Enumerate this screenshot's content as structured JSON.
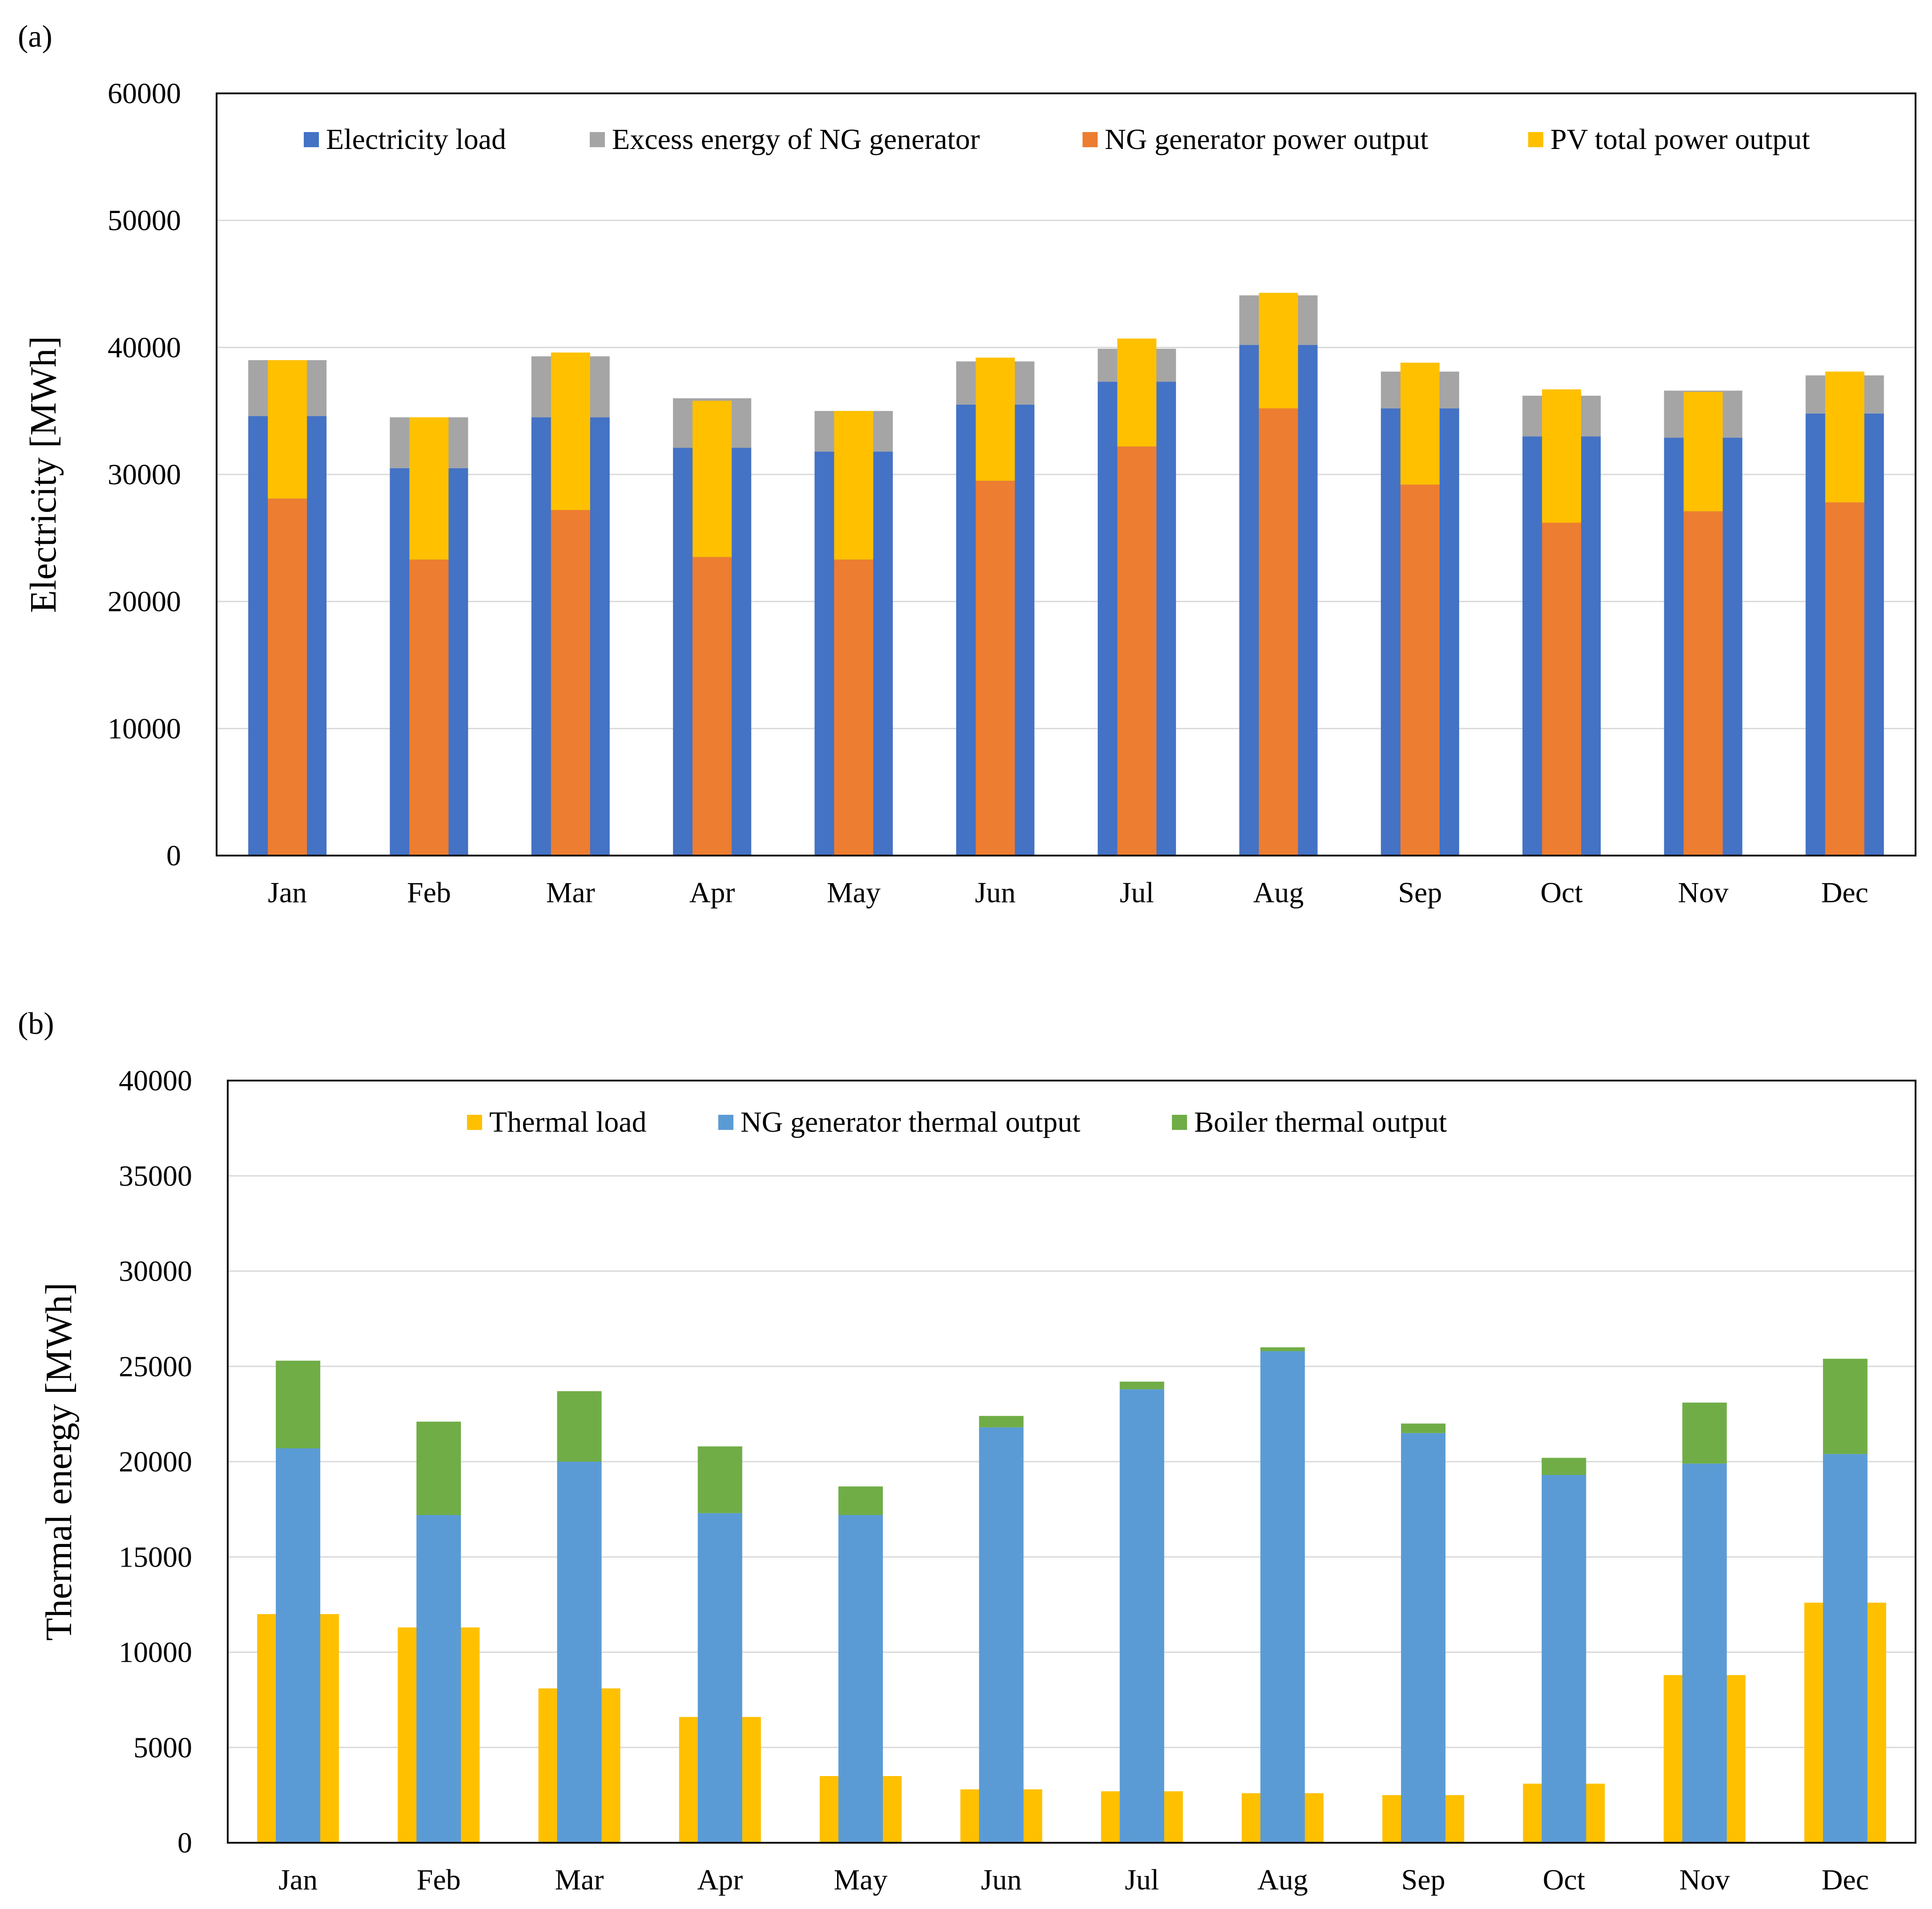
{
  "chart_data": [
    {
      "panel_label": "(a)",
      "type": "bar",
      "layout": "overlapping stacked bars (wide outer bar + narrow inner bar per month)",
      "xlabel": "",
      "ylabel": "Electricity [MWh]",
      "ylim": [
        0,
        60000
      ],
      "yticks": [
        "0",
        "10000",
        "20000",
        "30000",
        "40000",
        "50000",
        "60000"
      ],
      "grid": "horizontal",
      "legend_position": "top (inside plot, one row)",
      "categories": [
        "Jan",
        "Feb",
        "Mar",
        "Apr",
        "May",
        "Jun",
        "Jul",
        "Aug",
        "Sep",
        "Oct",
        "Nov",
        "Dec"
      ],
      "legend": [
        {
          "name": "Electricity load",
          "color": "#4472C4"
        },
        {
          "name": "Excess energy of NG generator",
          "color": "#A5A5A5"
        },
        {
          "name": "NG generator power output",
          "color": "#ED7D31"
        },
        {
          "name": "PV total power output",
          "color": "#FFC000"
        }
      ],
      "outer_stack": [
        {
          "name": "Electricity load",
          "color": "#4472C4",
          "values": [
            34600,
            30500,
            34500,
            32100,
            31800,
            35500,
            37300,
            40200,
            35200,
            33000,
            32900,
            34800
          ]
        },
        {
          "name": "Excess energy of NG generator",
          "color": "#A5A5A5",
          "values": [
            4400,
            4000,
            4800,
            3900,
            3200,
            3400,
            2600,
            3900,
            2900,
            3200,
            3700,
            3000
          ]
        }
      ],
      "inner_stack": [
        {
          "name": "NG generator power output",
          "color": "#ED7D31",
          "values": [
            28100,
            23300,
            27200,
            23500,
            23300,
            29500,
            32200,
            35200,
            29200,
            26200,
            27100,
            27800
          ]
        },
        {
          "name": "PV total power output",
          "color": "#FFC000",
          "values": [
            10900,
            11200,
            12400,
            12300,
            11700,
            9700,
            8500,
            9100,
            9600,
            10500,
            9400,
            10300
          ]
        }
      ]
    },
    {
      "panel_label": "(b)",
      "type": "bar",
      "layout": "overlapping bars (wide outer bar + narrow inner stacked bar per month)",
      "xlabel": "",
      "ylabel": "Thermal energy [MWh]",
      "ylim": [
        0,
        40000
      ],
      "yticks": [
        "0",
        "5000",
        "10000",
        "15000",
        "20000",
        "25000",
        "30000",
        "35000",
        "40000"
      ],
      "grid": "horizontal",
      "legend_position": "top (inside plot, one row)",
      "categories": [
        "Jan",
        "Feb",
        "Mar",
        "Apr",
        "May",
        "Jun",
        "Jul",
        "Aug",
        "Sep",
        "Oct",
        "Nov",
        "Dec"
      ],
      "legend": [
        {
          "name": "Thermal load",
          "color": "#FFC000"
        },
        {
          "name": "NG generator thermal output",
          "color": "#5B9BD5"
        },
        {
          "name": "Boiler thermal output",
          "color": "#70AD47"
        }
      ],
      "outer_stack": [
        {
          "name": "Thermal load",
          "color": "#FFC000",
          "values": [
            12000,
            11300,
            8100,
            6600,
            3500,
            2800,
            2700,
            2600,
            2500,
            3100,
            8800,
            12600
          ]
        }
      ],
      "inner_stack": [
        {
          "name": "NG generator thermal output",
          "color": "#5B9BD5",
          "values": [
            20700,
            17200,
            20000,
            17300,
            17200,
            21800,
            23800,
            25800,
            21500,
            19300,
            19900,
            20400
          ]
        },
        {
          "name": "Boiler thermal output",
          "color": "#70AD47",
          "values": [
            4600,
            4900,
            3700,
            3500,
            1500,
            600,
            400,
            200,
            500,
            900,
            3200,
            5000
          ]
        }
      ]
    }
  ]
}
